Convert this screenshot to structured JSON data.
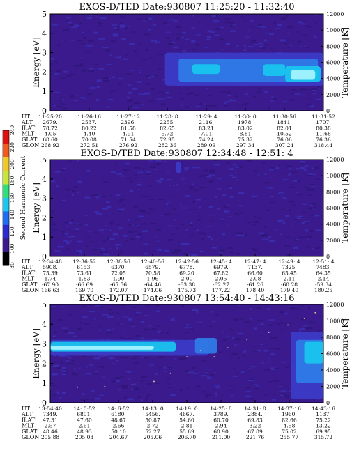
{
  "colors": {
    "background": "#3a1a8c",
    "weak": "#3c3cc8",
    "medium": "#2f7de8",
    "strong": "#19c8f0",
    "peak": "#a8f4ff",
    "trace": "#f0d0a0"
  },
  "colorbar": {
    "label": "Second Harmonic Current",
    "ticks": [
      "80",
      "100",
      "120",
      "140",
      "160",
      "180",
      "200",
      "220",
      "240"
    ],
    "colors": [
      "#000000",
      "#3a1a8c",
      "#2a2ad0",
      "#1d6ef0",
      "#19c8f0",
      "#2ee07a",
      "#c8e63a",
      "#f0c828",
      "#f05a1e",
      "#e01010"
    ]
  },
  "chart_data": [
    {
      "type": "heatmap",
      "title": "EXOS-D/TED   Date:930807  11:25:20 - 11:32:40",
      "ylabel": "Energy [eV]",
      "y2label": "Temperature [K]",
      "ylim": [
        0,
        5
      ],
      "y2lim": [
        0,
        12000
      ],
      "yticks": [
        "0",
        "1",
        "2",
        "3",
        "4",
        "5"
      ],
      "y2ticks": [
        "0",
        "2000",
        "4000",
        "6000",
        "8000",
        "10000",
        "12000"
      ],
      "row_labels": [
        "UT",
        "ALT",
        "ILAT",
        "MLT",
        "GLAT",
        "GLON"
      ],
      "columns": [
        [
          "11:25:20",
          "2679.",
          "78.72",
          "4.05",
          "68.60",
          "268.92"
        ],
        [
          "11:26:16",
          "2537.",
          "80.22",
          "4.40",
          "70.08",
          "272.51"
        ],
        [
          "11:27:12",
          "2396.",
          "81.58",
          "4.91",
          "71.54",
          "276.92"
        ],
        [
          "11:28: 8",
          "2255.",
          "82.65",
          "5.72",
          "72.95",
          "282.36"
        ],
        [
          "11:29: 4",
          "2116.",
          "83.21",
          "7.01",
          "74.24",
          "289.09"
        ],
        [
          "11:30: 0",
          "1978.",
          "83.02",
          "8.81",
          "75.32",
          "297.34"
        ],
        [
          "11:30:56",
          "1841.",
          "82.01",
          "10.52",
          "76.06",
          "307.24"
        ],
        [
          "11:31:52",
          "1707.",
          "80.38",
          "11.68",
          "76.36",
          "318.44"
        ]
      ],
      "bands": [
        {
          "t0": 0.42,
          "t1": 1.0,
          "e0": 1.3,
          "e1": 3.0,
          "level": "weak"
        },
        {
          "t0": 0.47,
          "t1": 0.98,
          "e0": 1.5,
          "e1": 2.7,
          "level": "medium"
        },
        {
          "t0": 0.52,
          "t1": 0.62,
          "e0": 1.9,
          "e1": 2.4,
          "level": "strong"
        },
        {
          "t0": 0.78,
          "t1": 0.86,
          "e0": 1.8,
          "e1": 2.4,
          "level": "strong"
        },
        {
          "t0": 0.86,
          "t1": 0.99,
          "e0": 1.5,
          "e1": 2.3,
          "level": "strong"
        },
        {
          "t0": 0.88,
          "t1": 0.97,
          "e0": 1.6,
          "e1": 2.1,
          "level": "peak"
        }
      ],
      "trace": []
    },
    {
      "type": "heatmap",
      "title": "EXOS-D/TED   Date:930807  12:34:48 - 12:51: 4",
      "ylabel": "Energy [eV]",
      "y2label": "Temperature [K]",
      "ylim": [
        0,
        5
      ],
      "y2lim": [
        0,
        12000
      ],
      "yticks": [
        "0",
        "1",
        "2",
        "3",
        "4",
        "5"
      ],
      "y2ticks": [
        "0",
        "2000",
        "4000",
        "6000",
        "8000",
        "10000",
        "12000"
      ],
      "row_labels": [
        "UT",
        "ALT",
        "ILAT",
        "MLT",
        "GLAT",
        "GLON"
      ],
      "columns": [
        [
          "12:34:48",
          "5908.",
          "75.39",
          "1.74",
          "-67.90",
          "166.63"
        ],
        [
          "12:36:52",
          "6153.",
          "73.61",
          "1.83",
          "-66.69",
          "169.70"
        ],
        [
          "12:38:56",
          "6370.",
          "72.05",
          "1.90",
          "-65.56",
          "172.07"
        ],
        [
          "12:40:56",
          "6579.",
          "70.58",
          "1.96",
          "-64.46",
          "174.06"
        ],
        [
          "12:42:56",
          "6778.",
          "69.20",
          "2.00",
          "-63.38",
          "175.73"
        ],
        [
          "12:45: 4",
          "6979.",
          "67.82",
          "2.05",
          "-62.27",
          "177.22"
        ],
        [
          "12:47: 4",
          "7137.",
          "66.60",
          "2.08",
          "-61.26",
          "178.40"
        ],
        [
          "12:49: 4",
          "7325.",
          "65.45",
          "2.11",
          "-60.28",
          "179.40"
        ],
        [
          "12:51: 4",
          "7483.",
          "64.35",
          "2.14",
          "-59.34",
          "180.25"
        ]
      ],
      "bands": [
        {
          "t0": 0.46,
          "t1": 0.48,
          "e0": 4.3,
          "e1": 4.9,
          "level": "weak"
        }
      ],
      "trace": []
    },
    {
      "type": "heatmap",
      "title": "EXOS-D/TED   Date:930807  13:54:40 - 14:43:16",
      "ylabel": "Energy [eV]",
      "y2label": "Temperature [K]",
      "ylim": [
        0,
        5
      ],
      "y2lim": [
        0,
        12000
      ],
      "yticks": [
        "0",
        "1",
        "2",
        "3",
        "4",
        "5"
      ],
      "y2ticks": [
        "0",
        "2000",
        "4000",
        "6000",
        "8000",
        "10000",
        "12000"
      ],
      "row_labels": [
        "UT",
        "ALT",
        "ILAT",
        "MLT",
        "GLAT",
        "GLON"
      ],
      "columns": [
        [
          "13:54:40",
          "7349.",
          "47.31",
          "2.57",
          "48.46",
          "205.88"
        ],
        [
          "14: 0:52",
          "6801.",
          "47.60",
          "2.61",
          "48.93",
          "205.03"
        ],
        [
          "14: 6:52",
          "6180.",
          "48.67",
          "2.66",
          "50.10",
          "204.67"
        ],
        [
          "14:13: 0",
          "5456.",
          "50.87",
          "2.72",
          "52.27",
          "205.06"
        ],
        [
          "14:19: 0",
          "4667.",
          "54.60",
          "2.81",
          "55.69",
          "206.70"
        ],
        [
          "14:25: 8",
          "3789.",
          "60.70",
          "2.94",
          "60.90",
          "211.00"
        ],
        [
          "14:31: 8",
          "2884.",
          "69.83",
          "3.22",
          "67.89",
          "221.76"
        ],
        [
          "14:37:16",
          "1960.",
          "82.66",
          "4.58",
          "75.02",
          "255.77"
        ],
        [
          "14:43:16",
          "1137.",
          "75.22",
          "13.22",
          "69.95",
          "315.72"
        ]
      ],
      "bands": [
        {
          "t0": 0.0,
          "t1": 0.58,
          "e0": 2.4,
          "e1": 3.2,
          "level": "weak"
        },
        {
          "t0": 0.0,
          "t1": 0.46,
          "e0": 2.6,
          "e1": 3.1,
          "level": "strong"
        },
        {
          "t0": 0.0,
          "t1": 0.38,
          "e0": 2.7,
          "e1": 2.9,
          "level": "peak"
        },
        {
          "t0": 0.53,
          "t1": 0.61,
          "e0": 2.5,
          "e1": 3.3,
          "level": "medium"
        },
        {
          "t0": 0.88,
          "t1": 1.0,
          "e0": 0.2,
          "e1": 3.6,
          "level": "weak"
        },
        {
          "t0": 0.9,
          "t1": 1.0,
          "e0": 1.0,
          "e1": 3.2,
          "level": "medium"
        },
        {
          "t0": 0.93,
          "t1": 1.0,
          "e0": 2.0,
          "e1": 3.1,
          "level": "strong"
        }
      ],
      "trace": [
        {
          "t": 0.0,
          "temp": 1800
        },
        {
          "t": 0.1,
          "temp": 1900
        },
        {
          "t": 0.2,
          "temp": 2000
        },
        {
          "t": 0.3,
          "temp": 2200
        },
        {
          "t": 0.38,
          "temp": 2600
        },
        {
          "t": 0.44,
          "temp": 3600
        },
        {
          "t": 0.5,
          "temp": 5600
        },
        {
          "t": 0.55,
          "temp": 6400
        },
        {
          "t": 0.6,
          "temp": 5600
        },
        {
          "t": 0.65,
          "temp": 6700
        },
        {
          "t": 0.72,
          "temp": 7700
        },
        {
          "t": 0.8,
          "temp": 8600
        },
        {
          "t": 0.87,
          "temp": 9500
        },
        {
          "t": 0.93,
          "temp": 10300
        },
        {
          "t": 0.97,
          "temp": 11000
        }
      ]
    }
  ]
}
